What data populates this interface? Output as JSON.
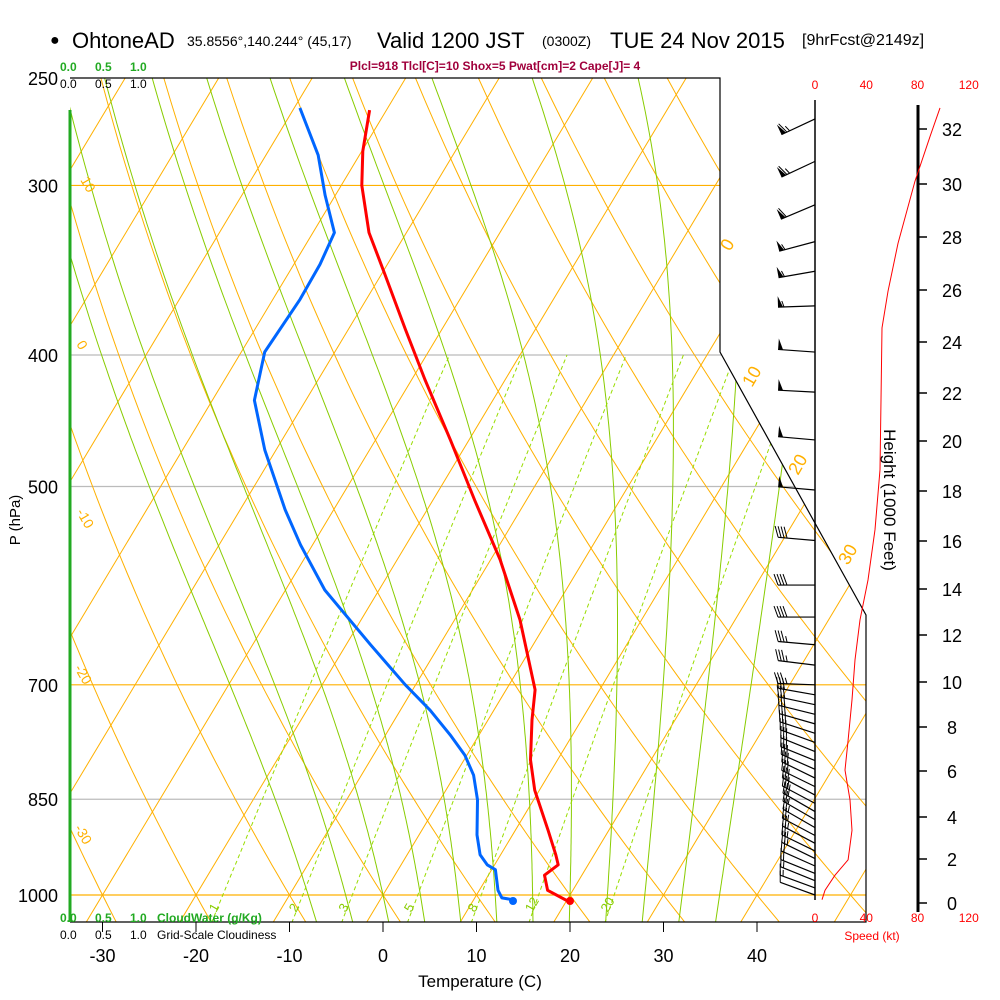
{
  "header": {
    "bullet": "●",
    "station": "OhtoneAD",
    "coords": "35.8556°,140.244° (45,17)",
    "valid": "Valid 1200 JST",
    "utc": "(0300Z)",
    "date": "TUE 24 Nov 2015",
    "forecast": "[9hrFcst@2149z]"
  },
  "indices": "Plcl=918 Tlcl[C]=10 Shox=5 Pwat[cm]=2 Cape[J]= 4",
  "colors": {
    "temperature": "#ff0000",
    "dewpoint": "#0066ff",
    "isotherm": "#ffb000",
    "moist": "#88cc00",
    "mixing": "#99dd00",
    "indices": "#a0003c",
    "speed": "#ff0000",
    "cloud": "#22aa22"
  },
  "cloud_scale": {
    "top_green": [
      "0.0",
      "0.5",
      "1.0"
    ],
    "top_black": [
      "0.0",
      "0.5",
      "1.0"
    ],
    "bottom_green": [
      "0.0",
      "0.5",
      "1.0"
    ],
    "bottom_green_label": "CloudWater (g/Kg)",
    "bottom_black": [
      "0.0",
      "0.5",
      "1.0"
    ],
    "bottom_black_label": "Grid-Scale Cloudiness"
  },
  "chart_data": {
    "type": "line",
    "subtype": "skew-T log-P sounding",
    "xlabel": "Temperature (C)",
    "ylabel": "P (hPa)",
    "xticks": [
      "-30",
      "-20",
      "-10",
      "0",
      "10",
      "20",
      "30",
      "40"
    ],
    "xtick_values": [
      -30,
      -20,
      -10,
      0,
      10,
      20,
      30,
      40
    ],
    "pressure_levels": [
      250,
      300,
      400,
      500,
      700,
      850,
      1000
    ],
    "pressure_labels": [
      "250",
      "300",
      "400",
      "500",
      "700",
      "850",
      "1000"
    ],
    "ylim": [
      1000,
      250
    ],
    "isotherm_labels_left": [
      "10",
      "0",
      "-10",
      "-20",
      "-30"
    ],
    "isotherm_labels_right": [
      "0",
      "10",
      "20",
      "30"
    ],
    "mixing_ratio_labels": [
      "1",
      "2",
      "3",
      "5",
      "8",
      "12",
      "20"
    ],
    "mixing_ratios": [
      1,
      2,
      3,
      5,
      8,
      12,
      20
    ],
    "series": [
      {
        "name": "Temperature",
        "points": [
          [
            264,
            -51.8
          ],
          [
            283,
            -49.9
          ],
          [
            300,
            -47.8
          ],
          [
            325,
            -44.0
          ],
          [
            349,
            -39.6
          ],
          [
            383,
            -33.9
          ],
          [
            417,
            -28.6
          ],
          [
            462,
            -22.0
          ],
          [
            512,
            -15.5
          ],
          [
            566,
            -9.0
          ],
          [
            627,
            -3.0
          ],
          [
            706,
            3.1
          ],
          [
            743,
            4.7
          ],
          [
            795,
            7.1
          ],
          [
            837,
            9.5
          ],
          [
            896,
            13.5
          ],
          [
            934,
            15.9
          ],
          [
            950,
            16.8
          ],
          [
            967,
            16.0
          ],
          [
            992,
            17.3
          ],
          [
            1012,
            20.4
          ]
        ]
      },
      {
        "name": "Dewpoint",
        "points": [
          [
            263,
            -59.4
          ],
          [
            285,
            -54.4
          ],
          [
            305,
            -51.1
          ],
          [
            325,
            -47.7
          ],
          [
            343,
            -47.2
          ],
          [
            364,
            -47.1
          ],
          [
            398,
            -47.5
          ],
          [
            432,
            -45.5
          ],
          [
            470,
            -41.2
          ],
          [
            520,
            -35.2
          ],
          [
            552,
            -31.3
          ],
          [
            596,
            -25.8
          ],
          [
            627,
            -21.2
          ],
          [
            654,
            -17.4
          ],
          [
            700,
            -11.1
          ],
          [
            731,
            -6.8
          ],
          [
            762,
            -3.1
          ],
          [
            789,
            -0.2
          ],
          [
            816,
            2.0
          ],
          [
            851,
            4.0
          ],
          [
            903,
            6.2
          ],
          [
            934,
            7.8
          ],
          [
            950,
            9.2
          ],
          [
            958,
            10.4
          ],
          [
            992,
            12.0
          ],
          [
            1005,
            12.9
          ],
          [
            1008,
            14.2
          ]
        ]
      }
    ],
    "surface": {
      "temperature": 20.0,
      "dewpoint": 14.0
    },
    "wind_speed_axis": {
      "label": "Speed (kt)",
      "ticks": [
        "0",
        "40",
        "80",
        "120"
      ],
      "tick_values": [
        0,
        40,
        80,
        120
      ]
    },
    "wind_speed_profile": [
      [
        263,
        97.6
      ],
      [
        276,
        89.8
      ],
      [
        298,
        78.0
      ],
      [
        331,
        64.8
      ],
      [
        359,
        57.0
      ],
      [
        382,
        52.3
      ],
      [
        432,
        51.5
      ],
      [
        486,
        50.7
      ],
      [
        538,
        46.8
      ],
      [
        586,
        41.4
      ],
      [
        627,
        35.1
      ],
      [
        671,
        31.2
      ],
      [
        718,
        28.9
      ],
      [
        769,
        25.8
      ],
      [
        809,
        23.4
      ],
      [
        851,
        27.3
      ],
      [
        896,
        28.9
      ],
      [
        942,
        25.8
      ],
      [
        967,
        15.6
      ],
      [
        992,
        7.8
      ],
      [
        1008,
        5.5
      ]
    ],
    "wind_barbs": [
      [
        268,
        245,
        65
      ],
      [
        288,
        245,
        65
      ],
      [
        310,
        247,
        60
      ],
      [
        330,
        255,
        55
      ],
      [
        347,
        260,
        55
      ],
      [
        368,
        268,
        55
      ],
      [
        398,
        274,
        50
      ],
      [
        426,
        273,
        50
      ],
      [
        462,
        275,
        50
      ],
      [
        503,
        275,
        50
      ],
      [
        548,
        275,
        40
      ],
      [
        591,
        270,
        40
      ],
      [
        624,
        270,
        40
      ],
      [
        654,
        275,
        35
      ],
      [
        677,
        277,
        35
      ],
      [
        700,
        272,
        35
      ],
      [
        712,
        280,
        30
      ],
      [
        724,
        282,
        30
      ],
      [
        736,
        284,
        30
      ],
      [
        748,
        286,
        30
      ],
      [
        760,
        288,
        30
      ],
      [
        772,
        290,
        30
      ],
      [
        784,
        292,
        30
      ],
      [
        796,
        292,
        30
      ],
      [
        808,
        294,
        30
      ],
      [
        820,
        296,
        30
      ],
      [
        832,
        296,
        30
      ],
      [
        844,
        298,
        30
      ],
      [
        856,
        298,
        30
      ],
      [
        868,
        300,
        30
      ],
      [
        880,
        300,
        25
      ],
      [
        892,
        300,
        25
      ],
      [
        904,
        298,
        25
      ],
      [
        916,
        298,
        25
      ],
      [
        928,
        296,
        25
      ],
      [
        940,
        296,
        25
      ],
      [
        952,
        294,
        20
      ],
      [
        964,
        292,
        20
      ],
      [
        976,
        292,
        15
      ],
      [
        988,
        290,
        15
      ],
      [
        1000,
        290,
        10
      ]
    ],
    "height_axis": {
      "label": "Height (1000 Feet)",
      "ticks": [
        "0",
        "2",
        "4",
        "6",
        "8",
        "10",
        "12",
        "14",
        "16",
        "18",
        "20",
        "22",
        "24",
        "26",
        "28",
        "30",
        "32"
      ]
    }
  }
}
